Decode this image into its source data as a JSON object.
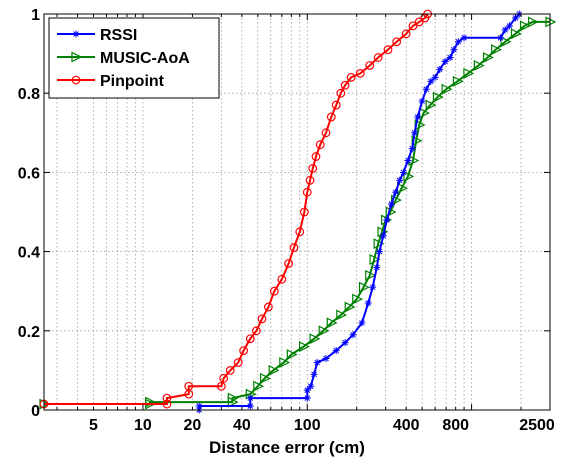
{
  "chart_data": {
    "type": "line",
    "title": "",
    "xlabel": "Distance error (cm)",
    "ylabel": "",
    "x_scale": "log",
    "xlim": [
      2.5,
      3000
    ],
    "ylim": [
      0,
      1
    ],
    "grid": true,
    "legend_position": "top-left",
    "x_ticks": [
      5,
      10,
      20,
      40,
      100,
      400,
      800,
      2500
    ],
    "y_ticks": [
      0,
      0.2,
      0.4,
      0.6,
      0.8,
      1
    ],
    "y_tick_labels": [
      "0",
      "0.2",
      "0.4",
      "0.6",
      "0.8",
      "1"
    ],
    "series": [
      {
        "name": "RSSI",
        "color": "#0000ff",
        "marker": "asterisk",
        "points": [
          [
            22,
            0
          ],
          [
            22,
            0.01
          ],
          [
            45,
            0.01
          ],
          [
            45,
            0.03
          ],
          [
            100,
            0.03
          ],
          [
            100,
            0.05
          ],
          [
            105,
            0.06
          ],
          [
            110,
            0.09
          ],
          [
            115,
            0.12
          ],
          [
            130,
            0.13
          ],
          [
            150,
            0.15
          ],
          [
            170,
            0.17
          ],
          [
            190,
            0.19
          ],
          [
            215,
            0.22
          ],
          [
            235,
            0.27
          ],
          [
            250,
            0.31
          ],
          [
            265,
            0.36
          ],
          [
            275,
            0.4
          ],
          [
            290,
            0.44
          ],
          [
            305,
            0.48
          ],
          [
            325,
            0.52
          ],
          [
            345,
            0.55
          ],
          [
            365,
            0.58
          ],
          [
            385,
            0.6
          ],
          [
            410,
            0.63
          ],
          [
            435,
            0.66
          ],
          [
            450,
            0.7
          ],
          [
            470,
            0.74
          ],
          [
            500,
            0.78
          ],
          [
            530,
            0.81
          ],
          [
            565,
            0.83
          ],
          [
            600,
            0.84
          ],
          [
            640,
            0.86
          ],
          [
            690,
            0.88
          ],
          [
            740,
            0.89
          ],
          [
            780,
            0.91
          ],
          [
            830,
            0.93
          ],
          [
            900,
            0.94
          ],
          [
            1500,
            0.94
          ],
          [
            1600,
            0.96
          ],
          [
            1700,
            0.97
          ],
          [
            1850,
            0.99
          ],
          [
            1950,
            1.0
          ]
        ]
      },
      {
        "name": "MUSIC-AoA",
        "color": "#008000",
        "marker": "triangle-right",
        "points": [
          [
            2.5,
            0.015
          ],
          [
            11,
            0.015
          ],
          [
            11,
            0.02
          ],
          [
            35,
            0.02
          ],
          [
            35,
            0.03
          ],
          [
            45,
            0.04
          ],
          [
            50,
            0.06
          ],
          [
            55,
            0.08
          ],
          [
            62,
            0.1
          ],
          [
            72,
            0.12
          ],
          [
            80,
            0.14
          ],
          [
            95,
            0.16
          ],
          [
            110,
            0.18
          ],
          [
            125,
            0.2
          ],
          [
            140,
            0.22
          ],
          [
            160,
            0.24
          ],
          [
            180,
            0.26
          ],
          [
            200,
            0.28
          ],
          [
            220,
            0.31
          ],
          [
            240,
            0.34
          ],
          [
            255,
            0.38
          ],
          [
            270,
            0.42
          ],
          [
            285,
            0.45
          ],
          [
            300,
            0.48
          ],
          [
            320,
            0.5
          ],
          [
            345,
            0.53
          ],
          [
            375,
            0.56
          ],
          [
            410,
            0.59
          ],
          [
            440,
            0.63
          ],
          [
            460,
            0.68
          ],
          [
            480,
            0.72
          ],
          [
            510,
            0.75
          ],
          [
            560,
            0.77
          ],
          [
            620,
            0.79
          ],
          [
            700,
            0.81
          ],
          [
            820,
            0.83
          ],
          [
            950,
            0.85
          ],
          [
            1100,
            0.87
          ],
          [
            1250,
            0.89
          ],
          [
            1400,
            0.91
          ],
          [
            1600,
            0.93
          ],
          [
            1850,
            0.95
          ],
          [
            2100,
            0.97
          ],
          [
            2350,
            0.98
          ],
          [
            3000,
            0.98
          ]
        ]
      },
      {
        "name": "Pinpoint",
        "color": "#ff0000",
        "marker": "circle",
        "points": [
          [
            2.5,
            0.015
          ],
          [
            14,
            0.015
          ],
          [
            14,
            0.03
          ],
          [
            19,
            0.04
          ],
          [
            19,
            0.06
          ],
          [
            30,
            0.06
          ],
          [
            31,
            0.08
          ],
          [
            34,
            0.1
          ],
          [
            38,
            0.12
          ],
          [
            41,
            0.15
          ],
          [
            45,
            0.18
          ],
          [
            49,
            0.2
          ],
          [
            53,
            0.23
          ],
          [
            58,
            0.26
          ],
          [
            63,
            0.3
          ],
          [
            70,
            0.33
          ],
          [
            77,
            0.37
          ],
          [
            83,
            0.41
          ],
          [
            90,
            0.45
          ],
          [
            96,
            0.5
          ],
          [
            100,
            0.55
          ],
          [
            104,
            0.58
          ],
          [
            108,
            0.61
          ],
          [
            113,
            0.64
          ],
          [
            120,
            0.67
          ],
          [
            130,
            0.7
          ],
          [
            140,
            0.74
          ],
          [
            150,
            0.77
          ],
          [
            160,
            0.8
          ],
          [
            170,
            0.82
          ],
          [
            185,
            0.84
          ],
          [
            210,
            0.85
          ],
          [
            240,
            0.87
          ],
          [
            270,
            0.89
          ],
          [
            310,
            0.91
          ],
          [
            350,
            0.93
          ],
          [
            400,
            0.95
          ],
          [
            440,
            0.97
          ],
          [
            480,
            0.98
          ],
          [
            520,
            0.99
          ],
          [
            540,
            1.0
          ]
        ]
      }
    ]
  }
}
